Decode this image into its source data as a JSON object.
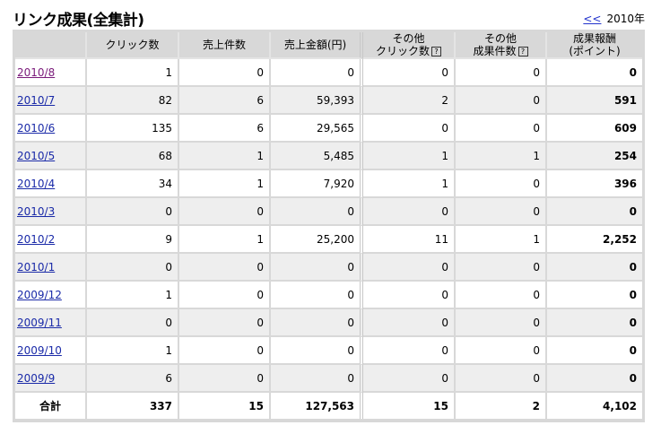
{
  "title": "リンク成果(全集計)",
  "year_nav": {
    "prev": "<<",
    "current": "2010年"
  },
  "headers": [
    "",
    "クリック数",
    "売上件数",
    "売上金額(円)",
    "その他\nクリック数",
    "その他\n成果件数",
    "成果報酬\n(ポイント)"
  ],
  "help_icon": "?",
  "rows": [
    {
      "month": "2010/8",
      "clicks": "1",
      "sales": "0",
      "amount": "0",
      "other_clicks": "0",
      "other_results": "0",
      "reward": "0"
    },
    {
      "month": "2010/7",
      "clicks": "82",
      "sales": "6",
      "amount": "59,393",
      "other_clicks": "2",
      "other_results": "0",
      "reward": "591"
    },
    {
      "month": "2010/6",
      "clicks": "135",
      "sales": "6",
      "amount": "29,565",
      "other_clicks": "0",
      "other_results": "0",
      "reward": "609"
    },
    {
      "month": "2010/5",
      "clicks": "68",
      "sales": "1",
      "amount": "5,485",
      "other_clicks": "1",
      "other_results": "1",
      "reward": "254"
    },
    {
      "month": "2010/4",
      "clicks": "34",
      "sales": "1",
      "amount": "7,920",
      "other_clicks": "1",
      "other_results": "0",
      "reward": "396"
    },
    {
      "month": "2010/3",
      "clicks": "0",
      "sales": "0",
      "amount": "0",
      "other_clicks": "0",
      "other_results": "0",
      "reward": "0"
    },
    {
      "month": "2010/2",
      "clicks": "9",
      "sales": "1",
      "amount": "25,200",
      "other_clicks": "11",
      "other_results": "1",
      "reward": "2,252"
    },
    {
      "month": "2010/1",
      "clicks": "0",
      "sales": "0",
      "amount": "0",
      "other_clicks": "0",
      "other_results": "0",
      "reward": "0"
    },
    {
      "month": "2009/12",
      "clicks": "1",
      "sales": "0",
      "amount": "0",
      "other_clicks": "0",
      "other_results": "0",
      "reward": "0"
    },
    {
      "month": "2009/11",
      "clicks": "0",
      "sales": "0",
      "amount": "0",
      "other_clicks": "0",
      "other_results": "0",
      "reward": "0"
    },
    {
      "month": "2009/10",
      "clicks": "1",
      "sales": "0",
      "amount": "0",
      "other_clicks": "0",
      "other_results": "0",
      "reward": "0"
    },
    {
      "month": "2009/9",
      "clicks": "6",
      "sales": "0",
      "amount": "0",
      "other_clicks": "0",
      "other_results": "0",
      "reward": "0"
    }
  ],
  "total": {
    "label": "合計",
    "clicks": "337",
    "sales": "15",
    "amount": "127,563",
    "other_clicks": "15",
    "other_results": "2",
    "reward": "4,102"
  }
}
